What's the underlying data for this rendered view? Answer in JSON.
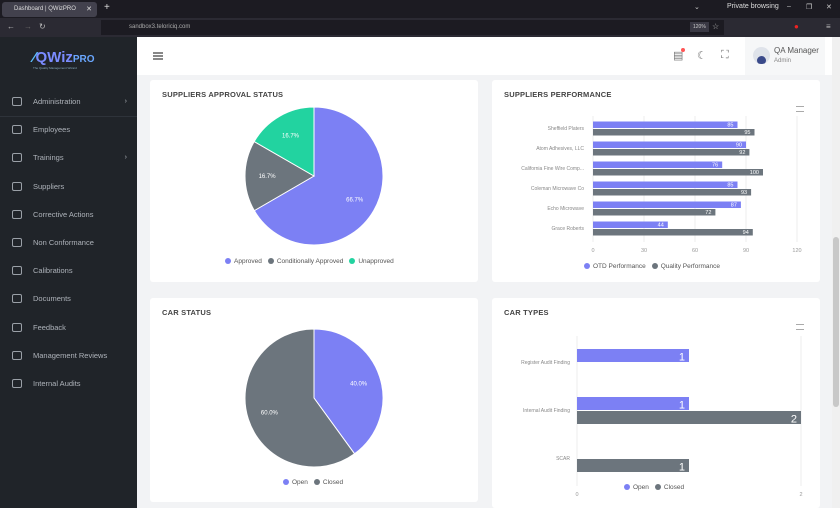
{
  "browser": {
    "tab_title": "Dashboard | QWizPRO",
    "url": "sandbox3.teloriciq.com",
    "zoom": "120%",
    "private_label": "Private browsing"
  },
  "sidebar": {
    "logo": "QWiz",
    "logo_accent": "PRO",
    "tagline": "The Quality Management Wizard",
    "items": [
      {
        "label": "Administration",
        "icon": "gear-icon",
        "chevron": true
      },
      {
        "label": "Employees",
        "icon": "user-circle-icon"
      },
      {
        "label": "Trainings",
        "icon": "graduation-cap-icon",
        "chevron": true
      },
      {
        "label": "Suppliers",
        "icon": "users-icon"
      },
      {
        "label": "Corrective Actions",
        "icon": "building-icon"
      },
      {
        "label": "Non Conformance",
        "icon": "truck-icon"
      },
      {
        "label": "Calibrations",
        "icon": "crosshair-icon"
      },
      {
        "label": "Documents",
        "icon": "file-icon"
      },
      {
        "label": "Feedback",
        "icon": "chat-icon"
      },
      {
        "label": "Management Reviews",
        "icon": "refresh-icon"
      },
      {
        "label": "Internal Audits",
        "icon": "list-icon"
      }
    ]
  },
  "header": {
    "user_name": "QA Manager",
    "user_role": "Admin"
  },
  "colors": {
    "purple": "#7c80f4",
    "gray": "#6c757d",
    "green": "#22d3a0"
  },
  "chart_data": [
    {
      "type": "pie",
      "title": "SUPPLIERS APPROVAL STATUS",
      "labels": [
        "Approved",
        "Conditionally Approved",
        "Unapproved"
      ],
      "values": [
        66.7,
        16.7,
        16.7
      ],
      "data_labels": [
        "66.7%",
        "16.7%",
        "16.7%"
      ],
      "colors": [
        "#7c80f4",
        "#6c757d",
        "#22d3a0"
      ],
      "legend": "bottom"
    },
    {
      "type": "bar",
      "orientation": "horizontal",
      "title": "SUPPLIERS PERFORMANCE",
      "categories": [
        "Sheffield Platers",
        "Atom Adhesives, LLC",
        "California Fine Wire Comp...",
        "Coleman Microwave Co",
        "Echo Microwave",
        "Grace Roberts"
      ],
      "series": [
        {
          "name": "OTD Performance",
          "values": [
            85,
            90,
            76,
            85,
            87,
            44
          ],
          "color": "#7c80f4"
        },
        {
          "name": "Quality Performance",
          "values": [
            95,
            92,
            100,
            93,
            72,
            94
          ],
          "color": "#6c757d"
        }
      ],
      "xlim": [
        0,
        120
      ],
      "xticks": [
        "0",
        "30",
        "60",
        "90",
        "120"
      ],
      "legend": "bottom"
    },
    {
      "type": "pie",
      "title": "CAR STATUS",
      "labels": [
        "Open",
        "Closed"
      ],
      "values": [
        40,
        60
      ],
      "data_labels": [
        "40.0%",
        "60.0%"
      ],
      "colors": [
        "#7c80f4",
        "#6c757d"
      ],
      "legend": "bottom"
    },
    {
      "type": "bar",
      "orientation": "horizontal",
      "title": "CAR TYPES",
      "categories": [
        "Register Audit Finding",
        "Internal Audit Finding",
        "SCAR"
      ],
      "series": [
        {
          "name": "Open",
          "values": [
            1,
            1,
            null
          ],
          "color": "#7c80f4"
        },
        {
          "name": "Closed",
          "values": [
            null,
            2,
            1
          ],
          "color": "#6c757d"
        }
      ],
      "xlim": [
        0,
        2
      ],
      "xticks": [
        "0",
        "2"
      ],
      "legend": "bottom"
    }
  ]
}
